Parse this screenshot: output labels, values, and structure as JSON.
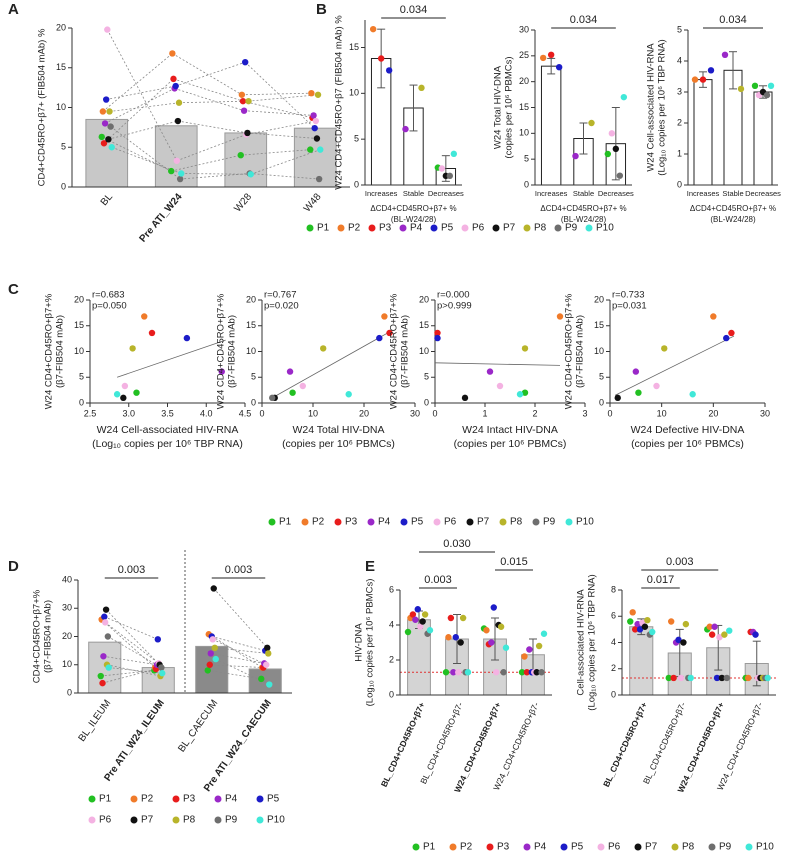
{
  "patients": [
    {
      "name": "P1",
      "color": "#22c022"
    },
    {
      "name": "P2",
      "color": "#f07b2a"
    },
    {
      "name": "P3",
      "color": "#e81c1c"
    },
    {
      "name": "P4",
      "color": "#9a28c8"
    },
    {
      "name": "P5",
      "color": "#1c1cc8"
    },
    {
      "name": "P6",
      "color": "#f4b2e2"
    },
    {
      "name": "P7",
      "color": "#111111"
    },
    {
      "name": "P8",
      "color": "#b8b42a"
    },
    {
      "name": "P9",
      "color": "#6e6e6e"
    },
    {
      "name": "P10",
      "color": "#40e8d8"
    }
  ],
  "chart_data": [
    {
      "type": "bar",
      "panel": "A",
      "ylabel": [
        "CD4+CD45RO+β7+ (FIB504 mAb) %"
      ],
      "categories": [
        "BL",
        "Pre ATI_W24",
        "W28",
        "W48"
      ],
      "bold": [
        false,
        true,
        false,
        false
      ],
      "values": [
        8.5,
        7.7,
        6.8,
        7.4
      ],
      "bar_color": "#c8c8c8",
      "connect": "all",
      "ylim": [
        0,
        20
      ],
      "yticks": [
        0,
        5,
        10,
        15,
        20
      ],
      "series": [
        {
          "values": [
            6.3,
            2.0,
            4.0,
            4.7
          ]
        },
        {
          "values": [
            9.5,
            16.8,
            11.6,
            11.8
          ]
        },
        {
          "values": [
            5.5,
            13.6,
            10.8,
            8.7
          ]
        },
        {
          "values": [
            8.0,
            12.4,
            9.6,
            9.0
          ]
        },
        {
          "values": [
            11.0,
            12.7,
            15.7,
            7.4
          ]
        },
        {
          "values": [
            19.8,
            3.3,
            6.6,
            8.3
          ]
        },
        {
          "values": [
            6.0,
            8.3,
            6.8,
            6.1
          ]
        },
        {
          "values": [
            9.5,
            10.6,
            10.8,
            11.6
          ]
        },
        {
          "values": [
            7.6,
            1.0,
            1.7,
            1.0
          ]
        },
        {
          "values": [
            5.0,
            1.7,
            1.6,
            4.7
          ]
        }
      ]
    },
    {
      "type": "bar",
      "panel": "B",
      "ylabel": [
        "W24 CD4+CD45RO+β7 (FIB504 mAb) %"
      ],
      "xlabel": [
        "ΔCD4+CD45RO+β7+ %",
        "(BL-W24/28)"
      ],
      "categories": [
        "Increases",
        "Stable",
        "Decreases"
      ],
      "values": [
        13.8,
        8.4,
        1.8
      ],
      "errors": [
        3.2,
        2.5,
        1.4
      ],
      "bar_color": "#ffffff",
      "ylim": [
        0,
        18
      ],
      "yticks": [
        0,
        5,
        10,
        15
      ],
      "brackets": [
        {
          "from": 0,
          "to": 2,
          "label": "0.034"
        }
      ],
      "series": [
        {
          "values": [
            null,
            null,
            1.9
          ]
        },
        {
          "values": [
            17.0,
            null,
            null
          ]
        },
        {
          "values": [
            13.8,
            null,
            null
          ]
        },
        {
          "values": [
            null,
            6.1,
            null
          ]
        },
        {
          "values": [
            12.5,
            null,
            null
          ]
        },
        {
          "values": [
            null,
            null,
            1.8
          ]
        },
        {
          "values": [
            null,
            null,
            1.0
          ]
        },
        {
          "values": [
            null,
            10.6,
            null
          ]
        },
        {
          "values": [
            null,
            null,
            1.0
          ]
        },
        {
          "values": [
            null,
            null,
            3.4
          ]
        }
      ]
    },
    {
      "type": "bar",
      "ylabel": [
        "W24 Total HIV-DNA",
        "(copies per 10⁶ PBMCs)"
      ],
      "xlabel": [
        "ΔCD4+CD45RO+β7+ %",
        "(BL-W24/28)"
      ],
      "categories": [
        "Increases",
        "Stable",
        "Decreases"
      ],
      "values": [
        23,
        9,
        8
      ],
      "errors": [
        1.5,
        3,
        7
      ],
      "bar_color": "#ffffff",
      "ylim": [
        0,
        30
      ],
      "yticks": [
        0,
        5,
        10,
        15,
        20,
        25,
        30
      ],
      "brackets": [
        {
          "from": 0,
          "to": 2,
          "label": "0.034"
        }
      ],
      "series": [
        {
          "values": [
            null,
            null,
            6.0
          ]
        },
        {
          "values": [
            24.6,
            null,
            null
          ]
        },
        {
          "values": [
            25.2,
            null,
            null
          ]
        },
        {
          "values": [
            null,
            5.6,
            null
          ]
        },
        {
          "values": [
            22.8,
            null,
            null
          ]
        },
        {
          "values": [
            null,
            null,
            10.0
          ]
        },
        {
          "values": [
            null,
            null,
            7.0
          ]
        },
        {
          "values": [
            null,
            12.0,
            null
          ]
        },
        {
          "values": [
            null,
            null,
            1.8
          ]
        },
        {
          "values": [
            null,
            null,
            17.0
          ]
        }
      ]
    },
    {
      "type": "bar",
      "ylabel": [
        "W24 Cell-associated HIV-RNA",
        "(Log₁₀ copies per 10⁶ TBP RNA)"
      ],
      "xlabel": [
        "ΔCD4+CD45RO+β7+ %",
        "(BL-W24/28)"
      ],
      "categories": [
        "Increases",
        "Stable",
        "Decreases"
      ],
      "values": [
        3.4,
        3.7,
        3.0
      ],
      "errors": [
        0.25,
        0.6,
        0.2
      ],
      "bar_color": "#ffffff",
      "ylim": [
        0,
        5
      ],
      "yticks": [
        0,
        1,
        2,
        3,
        4,
        5
      ],
      "brackets": [
        {
          "from": 0,
          "to": 2,
          "label": "0.034"
        }
      ],
      "series": [
        {
          "values": [
            null,
            null,
            3.2
          ]
        },
        {
          "values": [
            3.4,
            null,
            null
          ]
        },
        {
          "values": [
            3.4,
            null,
            null
          ]
        },
        {
          "values": [
            null,
            4.2,
            null
          ]
        },
        {
          "values": [
            3.7,
            null,
            null
          ]
        },
        {
          "values": [
            null,
            null,
            2.9
          ]
        },
        {
          "values": [
            null,
            null,
            3.0
          ]
        },
        {
          "values": [
            null,
            3.1,
            null
          ]
        },
        {
          "values": [
            null,
            null,
            2.9
          ]
        },
        {
          "values": [
            null,
            null,
            3.2
          ]
        }
      ]
    },
    {
      "type": "scatter",
      "panel": "C",
      "ylabel": [
        "W24 CD4+CD45RO+β7+%",
        "(β7-FIB504 mAb)"
      ],
      "xlabel": [
        "W24 Cell-associated HIV-RNA",
        "(Log₁₀ copies per 10⁶ TBP RNA)"
      ],
      "stats": [
        "r=0.683",
        "p=0.050"
      ],
      "xlim": [
        2.5,
        4.5
      ],
      "xticks": [
        {
          "value": 2.5,
          "label": "2.5"
        },
        {
          "value": 3.0,
          "label": "3.0"
        },
        {
          "value": 3.5,
          "label": "3.5"
        },
        {
          "value": 4.0,
          "label": "4.0"
        },
        {
          "value": 4.5,
          "label": "4.5"
        }
      ],
      "ylim": [
        0,
        20
      ],
      "yticks": [
        0,
        5,
        10,
        15,
        20
      ],
      "fit": {
        "x": [
          2.85,
          4.25
        ],
        "y": [
          5.0,
          12.2
        ]
      },
      "series": [
        {
          "x": 3.1,
          "y": 2.0
        },
        {
          "x": 3.2,
          "y": 16.8
        },
        {
          "x": 3.3,
          "y": 13.6
        },
        {
          "x": 4.2,
          "y": 6.1
        },
        {
          "x": 3.75,
          "y": 12.6
        },
        {
          "x": 2.95,
          "y": 3.3
        },
        {
          "x": 2.93,
          "y": 1.0
        },
        {
          "x": 3.05,
          "y": 10.6
        },
        {
          "x": null,
          "y": null
        },
        {
          "x": 2.85,
          "y": 1.7
        }
      ]
    },
    {
      "type": "scatter",
      "ylabel": [
        "W24 CD4+CD45RO+β7+%",
        "(β7-FIB504 mAb)"
      ],
      "xlabel": [
        "W24 Total HIV-DNA",
        "(copies per 10⁶ PBMCs)"
      ],
      "stats": [
        "r=0.767",
        "p=0.020"
      ],
      "xlim": [
        0,
        30
      ],
      "xticks": [
        0,
        10,
        20,
        30
      ],
      "ylim": [
        0,
        20
      ],
      "yticks": [
        0,
        5,
        10,
        15,
        20
      ],
      "fit": {
        "x": [
          2,
          25
        ],
        "y": [
          1,
          13.8
        ]
      },
      "series": [
        {
          "x": 6,
          "y": 2.0
        },
        {
          "x": 24,
          "y": 16.8
        },
        {
          "x": 25,
          "y": 13.6
        },
        {
          "x": 5.5,
          "y": 6.1
        },
        {
          "x": 23,
          "y": 12.6
        },
        {
          "x": 8,
          "y": 3.3
        },
        {
          "x": 2.5,
          "y": 1.0
        },
        {
          "x": 12,
          "y": 10.6
        },
        {
          "x": 2,
          "y": 1.0
        },
        {
          "x": 17,
          "y": 1.7
        }
      ]
    },
    {
      "type": "scatter",
      "ylabel": [
        "W24 CD4+CD45RO+β7+%",
        "(β7-FIB504 mAb)"
      ],
      "xlabel": [
        "W24 Intact HIV-DNA",
        "(copies per 10⁶ PBMCs)"
      ],
      "stats": [
        "r=0.000",
        "p>0.999"
      ],
      "xlim": [
        0,
        3
      ],
      "xticks": [
        0,
        1,
        2,
        3
      ],
      "ylim": [
        0,
        20
      ],
      "yticks": [
        0,
        5,
        10,
        15,
        20
      ],
      "fit": {
        "x": [
          0,
          2.5
        ],
        "y": [
          7.8,
          7.3
        ]
      },
      "series": [
        {
          "x": 1.8,
          "y": 2.0
        },
        {
          "x": 2.5,
          "y": 16.8
        },
        {
          "x": 0.05,
          "y": 13.6
        },
        {
          "x": 1.1,
          "y": 6.1
        },
        {
          "x": 0.05,
          "y": 12.6
        },
        {
          "x": 1.3,
          "y": 3.3
        },
        {
          "x": 0.6,
          "y": 1.0
        },
        {
          "x": 1.8,
          "y": 10.6
        },
        {
          "x": null,
          "y": null
        },
        {
          "x": 1.7,
          "y": 1.7
        }
      ]
    },
    {
      "type": "scatter",
      "ylabel": [
        "W24 CD4+CD45RO+β7+%",
        "(β7-FIB504 mAb)"
      ],
      "xlabel": [
        "W24 Defective HIV-DNA",
        "(copies per 10⁶ PBMCs)"
      ],
      "stats": [
        "r=0.733",
        "p=0.031"
      ],
      "xlim": [
        0,
        30
      ],
      "xticks": [
        0,
        10,
        20,
        30
      ],
      "ylim": [
        0,
        20
      ],
      "yticks": [
        0,
        5,
        10,
        15,
        20
      ],
      "fit": {
        "x": [
          1,
          24
        ],
        "y": [
          1.5,
          13
        ]
      },
      "series": [
        {
          "x": 5.5,
          "y": 2.0
        },
        {
          "x": 20,
          "y": 16.8
        },
        {
          "x": 23.5,
          "y": 13.6
        },
        {
          "x": 5,
          "y": 6.1
        },
        {
          "x": 22.5,
          "y": 12.6
        },
        {
          "x": 9,
          "y": 3.3
        },
        {
          "x": 1.5,
          "y": 1.0
        },
        {
          "x": 10.5,
          "y": 10.6
        },
        {
          "x": null,
          "y": null
        },
        {
          "x": 16,
          "y": 1.7
        }
      ]
    },
    {
      "type": "bar",
      "panel": "D",
      "ylabel": [
        "CD4+CD45RO+β7+%",
        "(β7-FIB504 mAb)"
      ],
      "categories": [
        "BL_ILEUM",
        "Pre ATI_W24_ILEUM",
        "BL_CAECUM",
        "Pre ATI_W24_CAECUM"
      ],
      "bold": [
        false,
        true,
        false,
        true
      ],
      "values": [
        18,
        9,
        16.5,
        8.5
      ],
      "bar_colors": [
        "#cfcfcf",
        "#cfcfcf",
        "#8a8a8a",
        "#8a8a8a"
      ],
      "connect": "pairs",
      "divider": true,
      "ylim": [
        0,
        40
      ],
      "yticks": [
        0,
        10,
        20,
        30,
        40
      ],
      "brackets": [
        {
          "from": 0,
          "to": 1,
          "label": "0.003"
        },
        {
          "from": 2,
          "to": 3,
          "label": "0.003"
        }
      ],
      "series": [
        {
          "values": [
            6,
            8,
            8,
            5
          ]
        },
        {
          "values": [
            26,
            9,
            20.8,
            9
          ]
        },
        {
          "values": [
            3.5,
            8.5,
            10,
            9
          ]
        },
        {
          "values": [
            13,
            10,
            14,
            10.5
          ]
        },
        {
          "values": [
            27,
            19,
            20,
            15
          ]
        },
        {
          "values": [
            25,
            10.5,
            19,
            10
          ]
        },
        {
          "values": [
            29.5,
            10,
            37,
            16
          ]
        },
        {
          "values": [
            10,
            6,
            16,
            14
          ]
        },
        {
          "values": [
            20,
            9,
            null,
            null
          ]
        },
        {
          "values": [
            9,
            7,
            12,
            3
          ]
        }
      ]
    },
    {
      "type": "bar",
      "panel": "E",
      "ylabel": [
        "HIV-DNA",
        "(Log₁₀ copies per 10⁶ PBMCs)"
      ],
      "categories": [
        "BL_CD4+CD45RO+β7+",
        "BL_CD4+CD45RO+β7-",
        "W24_CD4+CD45RO+β7+",
        "W24_CD4+CD45RO+β7-"
      ],
      "bold": [
        true,
        false,
        true,
        false
      ],
      "values": [
        4.3,
        3.2,
        3.2,
        2.3
      ],
      "errors": [
        0.5,
        1.4,
        1.2,
        0.9
      ],
      "bar_color": "#d4d4d4",
      "threshold": 1.3,
      "threshold_color": "#e03030",
      "ylim": [
        0,
        6
      ],
      "yticks": [
        0,
        2,
        4,
        6
      ],
      "brackets": [
        {
          "from": 0,
          "to": 2,
          "label": "0.030"
        },
        {
          "from": 0,
          "to": 1,
          "label": "0.003"
        },
        {
          "from": 2,
          "to": 3,
          "label": "0.015"
        }
      ],
      "series": [
        {
          "values": [
            3.6,
            1.3,
            3.8,
            1.3
          ]
        },
        {
          "values": [
            4.4,
            3.3,
            3.7,
            2.2
          ]
        },
        {
          "values": [
            4.6,
            4.4,
            2.9,
            1.3
          ]
        },
        {
          "values": [
            4.3,
            1.3,
            3.0,
            2.6
          ]
        },
        {
          "values": [
            4.9,
            3.3,
            5.0,
            1.3
          ]
        },
        {
          "values": [
            3.9,
            1.3,
            1.3,
            1.3
          ]
        },
        {
          "values": [
            4.2,
            3.0,
            4.0,
            1.3
          ]
        },
        {
          "values": [
            4.6,
            4.4,
            3.9,
            2.8
          ]
        },
        {
          "values": [
            3.5,
            1.3,
            1.3,
            1.3
          ]
        },
        {
          "values": [
            3.7,
            1.3,
            2.7,
            3.5
          ]
        }
      ]
    },
    {
      "type": "bar",
      "ylabel": [
        "Cell-associated HIV-RNA",
        "(Log₁₀ copies per 10⁶ TBP RNA)"
      ],
      "categories": [
        "BL_CD4+CD45RO+β7+",
        "BL_CD4+CD45RO+β7-",
        "W24_CD4+CD45RO+β7+",
        "W24_CD4+CD45RO+β7-"
      ],
      "bold": [
        true,
        false,
        true,
        false
      ],
      "values": [
        5.2,
        3.2,
        3.6,
        2.4
      ],
      "errors": [
        0.6,
        1.8,
        1.7,
        1.7
      ],
      "bar_color": "#d4d4d4",
      "threshold": 1.3,
      "threshold_color": "#e03030",
      "ylim": [
        0,
        8
      ],
      "yticks": [
        0,
        2,
        4,
        6,
        8
      ],
      "brackets": [
        {
          "from": 0,
          "to": 2,
          "label": "0.003"
        },
        {
          "from": 0,
          "to": 1,
          "label": "0.017"
        }
      ],
      "series": [
        {
          "values": [
            5.6,
            1.3,
            5.0,
            1.3
          ]
        },
        {
          "values": [
            6.3,
            5.6,
            5.2,
            1.3
          ]
        },
        {
          "values": [
            5.0,
            1.3,
            4.6,
            4.8
          ]
        },
        {
          "values": [
            5.4,
            4.0,
            5.2,
            4.8
          ]
        },
        {
          "values": [
            5.0,
            4.2,
            1.3,
            4.6
          ]
        },
        {
          "values": [
            5.5,
            1.3,
            4.4,
            1.3
          ]
        },
        {
          "values": [
            5.2,
            4.0,
            1.3,
            1.3
          ]
        },
        {
          "values": [
            5.7,
            5.4,
            4.6,
            1.3
          ]
        },
        {
          "values": [
            4.6,
            1.3,
            1.3,
            1.3
          ]
        },
        {
          "values": [
            4.8,
            1.3,
            4.9,
            1.3
          ]
        }
      ]
    }
  ]
}
